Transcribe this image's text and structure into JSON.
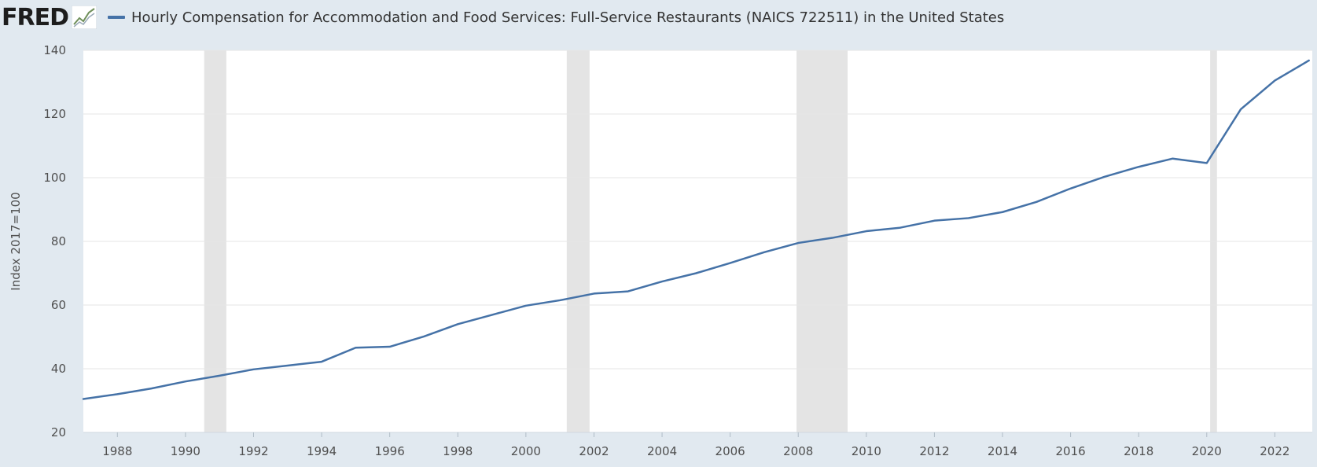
{
  "brand": {
    "logo_text": "FRED",
    "logo_icon": "trend-line-icon"
  },
  "colors": {
    "background": "#e1e9f0",
    "plot": "#ffffff",
    "series": "#4572a7",
    "recession": "#e4e4e4",
    "grid": "#e6e6e6"
  },
  "chart_data": {
    "type": "line",
    "title": "Hourly Compensation for Accommodation and Food Services: Full-Service Restaurants (NAICS 722511) in the United States",
    "xlabel": "",
    "ylabel": "Index 2017=100",
    "xlim": [
      1987,
      2023.1
    ],
    "ylim": [
      20,
      140
    ],
    "yticks": [
      20,
      40,
      60,
      80,
      100,
      120,
      140
    ],
    "xticks": [
      1988,
      1990,
      1992,
      1994,
      1996,
      1998,
      2000,
      2002,
      2004,
      2006,
      2008,
      2010,
      2012,
      2014,
      2016,
      2018,
      2020,
      2022
    ],
    "grid": true,
    "legend": "top-left",
    "recessions": [
      [
        1990.55,
        1991.2
      ],
      [
        2001.2,
        2001.87
      ],
      [
        2007.95,
        2009.45
      ],
      [
        2020.1,
        2020.3
      ]
    ],
    "series": [
      {
        "name": "Hourly Compensation for Accommodation and Food Services: Full-Service Restaurants (NAICS 722511) in the United States",
        "x": [
          1987,
          1988,
          1989,
          1990,
          1991,
          1992,
          1993,
          1994,
          1995,
          1996,
          1997,
          1998,
          1999,
          2000,
          2001,
          2002,
          2003,
          2004,
          2005,
          2006,
          2007,
          2008,
          2009,
          2010,
          2011,
          2012,
          2013,
          2014,
          2015,
          2016,
          2017,
          2018,
          2019,
          2020,
          2021,
          2022,
          2023
        ],
        "values": [
          30.5,
          32.0,
          33.8,
          36.0,
          37.8,
          39.8,
          41.0,
          42.2,
          46.6,
          46.9,
          50.1,
          54.0,
          56.9,
          59.8,
          61.5,
          63.6,
          64.3,
          67.4,
          70.0,
          73.2,
          76.6,
          79.5,
          81.1,
          83.2,
          84.3,
          86.5,
          87.3,
          89.2,
          92.4,
          96.6,
          100.3,
          103.4,
          106.0,
          104.6,
          121.5,
          130.5,
          136.8
        ]
      }
    ]
  }
}
